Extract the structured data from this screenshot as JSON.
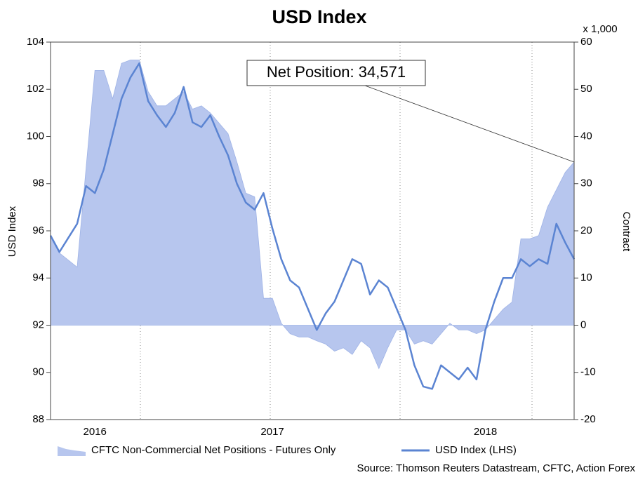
{
  "chart_data": {
    "type": "line",
    "title": "USD Index",
    "y_label": "USD Index",
    "y2_label": "Contract",
    "y2_unit": "x 1,000",
    "annotation": "Net Position: 34,571",
    "source": "Source: Thomson Reuters Datastream, CFTC, Action Forex",
    "categories": [
      null,
      null,
      null,
      null,
      null,
      "2016",
      null,
      null,
      null,
      null,
      null,
      null,
      null,
      null,
      null,
      null,
      null,
      null,
      null,
      null,
      null,
      null,
      null,
      null,
      null,
      "2017",
      null,
      null,
      null,
      null,
      null,
      null,
      null,
      null,
      null,
      null,
      null,
      null,
      null,
      null,
      null,
      null,
      null,
      null,
      null,
      null,
      null,
      null,
      null,
      "2018",
      null,
      null,
      null,
      null,
      null,
      null,
      null,
      null,
      null,
      null
    ],
    "series": [
      {
        "name": "CFTC Non-Commercial Net Positions - Futures Only",
        "kind": "area",
        "axis": "y2",
        "color": "#b7c6ee",
        "values": [
          19.0,
          15.3,
          13.8,
          12.3,
          33.2,
          54.0,
          54.0,
          48.0,
          55.5,
          56.2,
          56.2,
          49.5,
          46.5,
          46.5,
          48.0,
          49.5,
          45.8,
          46.5,
          45.0,
          42.8,
          40.6,
          34.6,
          28.0,
          27.2,
          5.7,
          5.7,
          0.4,
          -1.8,
          -2.5,
          -2.5,
          -3.3,
          -4.0,
          -5.5,
          -4.8,
          -6.2,
          -3.3,
          -4.8,
          -9.2,
          -4.8,
          -1.0,
          -1.0,
          -4.0,
          -3.3,
          -4.0,
          -1.8,
          0.4,
          -1.0,
          -1.0,
          -1.8,
          -1.0,
          1.2,
          3.4,
          4.9,
          18.3,
          18.3,
          19.0,
          25.0,
          28.7,
          32.4,
          34.571
        ]
      },
      {
        "name": "USD Index (LHS)",
        "kind": "line",
        "color": "#5b84d2",
        "values": [
          95.8,
          95.1,
          95.7,
          96.3,
          97.9,
          97.6,
          98.6,
          100.1,
          101.6,
          102.5,
          103.1,
          101.5,
          100.9,
          100.4,
          101.0,
          102.1,
          100.6,
          100.4,
          100.9,
          100.0,
          99.2,
          98.0,
          97.2,
          96.9,
          97.6,
          96.1,
          94.8,
          93.9,
          93.6,
          92.7,
          91.8,
          92.5,
          93.0,
          93.9,
          94.8,
          94.6,
          93.3,
          93.9,
          93.6,
          92.7,
          91.8,
          90.3,
          89.4,
          89.3,
          90.3,
          90.0,
          89.7,
          90.2,
          89.7,
          91.8,
          93.0,
          94.0,
          94.0,
          94.8,
          94.5,
          94.8,
          94.6,
          96.3,
          95.5,
          94.8
        ]
      }
    ],
    "ylim": [
      88,
      104
    ],
    "yticks": [
      88,
      90,
      92,
      94,
      96,
      98,
      100,
      102,
      104
    ],
    "y2lim": [
      -20,
      60
    ],
    "y2ticks": [
      -20,
      -10,
      0,
      10,
      20,
      30,
      40,
      50,
      60
    ]
  }
}
